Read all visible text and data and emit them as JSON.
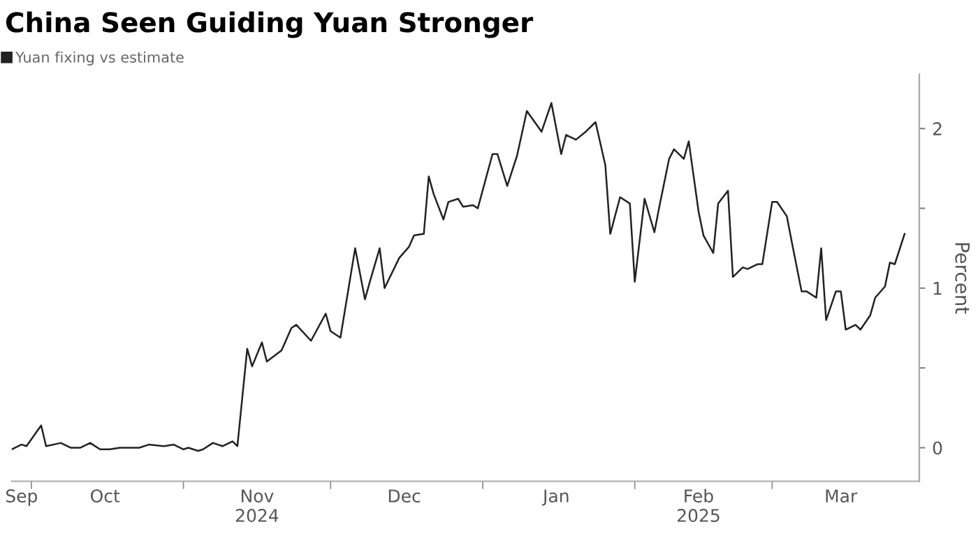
{
  "chart_data": {
    "type": "line",
    "title": "China Seen Guiding Yuan Stronger",
    "ylabel": "Percent",
    "legend": "top left",
    "xlim": [
      "2024-09-27",
      "2025-03-31"
    ],
    "ylim": [
      -0.21,
      2.34
    ],
    "yticks": [
      0,
      {
        "value": 0.5,
        "label": null
      },
      1,
      {
        "value": 1.5,
        "label": null
      },
      2
    ],
    "xticks": [
      {
        "value": "2024-09-29",
        "label": "Sep"
      },
      {
        "value": "2024-10-01",
        "label": null
      },
      {
        "value": "2024-10-16",
        "label": "Oct"
      },
      {
        "value": "2024-11-01",
        "label": null
      },
      {
        "value": "2024-11-16",
        "label": "Nov\n2024"
      },
      {
        "value": "2024-12-01",
        "label": null
      },
      {
        "value": "2024-12-16",
        "label": "Dec"
      },
      {
        "value": "2025-01-01",
        "label": null
      },
      {
        "value": "2025-01-16",
        "label": "Jan"
      },
      {
        "value": "2025-02-01",
        "label": null
      },
      {
        "value": "2025-02-14",
        "label": "Feb\n2025"
      },
      {
        "value": "2025-03-01",
        "label": null
      },
      {
        "value": "2025-03-15",
        "label": "Mar"
      }
    ],
    "series": [
      {
        "name": "Yuan fixing vs estimate",
        "color": "#222222",
        "x": [
          "2024-09-27",
          "2024-09-29",
          "2024-09-30",
          "2024-10-03",
          "2024-10-04",
          "2024-10-07",
          "2024-10-09",
          "2024-10-11",
          "2024-10-13",
          "2024-10-15",
          "2024-10-17",
          "2024-10-19",
          "2024-10-22",
          "2024-10-23",
          "2024-10-25",
          "2024-10-28",
          "2024-10-30",
          "2024-11-01",
          "2024-11-02",
          "2024-11-04",
          "2024-11-05",
          "2024-11-07",
          "2024-11-09",
          "2024-11-11",
          "2024-11-12",
          "2024-11-14",
          "2024-11-15",
          "2024-11-17",
          "2024-11-18",
          "2024-11-21",
          "2024-11-23",
          "2024-11-24",
          "2024-11-27",
          "2024-11-30",
          "2024-12-01",
          "2024-12-03",
          "2024-12-06",
          "2024-12-08",
          "2024-12-09",
          "2024-12-11",
          "2024-12-12",
          "2024-12-15",
          "2024-12-17",
          "2024-12-18",
          "2024-12-20",
          "2024-12-21",
          "2024-12-22",
          "2024-12-24",
          "2024-12-25",
          "2024-12-27",
          "2024-12-28",
          "2024-12-30",
          "2024-12-31",
          "2025-01-03",
          "2025-01-04",
          "2025-01-06",
          "2025-01-08",
          "2025-01-10",
          "2025-01-13",
          "2025-01-15",
          "2025-01-17",
          "2025-01-18",
          "2025-01-20",
          "2025-01-22",
          "2025-01-24",
          "2025-01-26",
          "2025-01-27",
          "2025-01-29",
          "2025-01-31",
          "2025-02-01",
          "2025-02-03",
          "2025-02-05",
          "2025-02-06",
          "2025-02-08",
          "2025-02-09",
          "2025-02-11",
          "2025-02-12",
          "2025-02-14",
          "2025-02-15",
          "2025-02-17",
          "2025-02-18",
          "2025-02-20",
          "2025-02-21",
          "2025-02-23",
          "2025-02-24",
          "2025-02-26",
          "2025-02-27",
          "2025-03-01",
          "2025-03-02",
          "2025-03-04",
          "2025-03-05",
          "2025-03-07",
          "2025-03-08",
          "2025-03-10",
          "2025-03-11",
          "2025-03-12",
          "2025-03-14",
          "2025-03-15",
          "2025-03-16",
          "2025-03-18",
          "2025-03-19",
          "2025-03-21",
          "2025-03-22",
          "2025-03-24",
          "2025-03-25",
          "2025-03-26",
          "2025-03-28"
        ],
        "values": [
          -0.01,
          0.02,
          0.01,
          0.14,
          0.01,
          0.03,
          0.0,
          0.0,
          0.03,
          -0.01,
          -0.01,
          0.0,
          0.0,
          0.0,
          0.02,
          0.01,
          0.02,
          -0.01,
          0.0,
          -0.02,
          -0.01,
          0.03,
          0.01,
          0.04,
          0.01,
          0.62,
          0.51,
          0.66,
          0.54,
          0.61,
          0.75,
          0.77,
          0.67,
          0.84,
          0.73,
          0.69,
          1.25,
          0.93,
          1.04,
          1.25,
          1.0,
          1.19,
          1.26,
          1.33,
          1.34,
          1.7,
          1.59,
          1.43,
          1.54,
          1.56,
          1.51,
          1.52,
          1.5,
          1.84,
          1.84,
          1.64,
          1.83,
          2.11,
          1.98,
          2.16,
          1.84,
          1.96,
          1.93,
          1.98,
          2.04,
          1.77,
          1.34,
          1.57,
          1.53,
          1.04,
          1.56,
          1.35,
          1.51,
          1.81,
          1.87,
          1.81,
          1.92,
          1.48,
          1.33,
          1.22,
          1.53,
          1.61,
          1.07,
          1.13,
          1.12,
          1.15,
          1.15,
          1.54,
          1.54,
          1.45,
          1.29,
          0.98,
          0.98,
          0.94,
          1.25,
          0.8,
          0.98,
          0.98,
          0.74,
          0.77,
          0.74,
          0.83,
          0.94,
          1.01,
          1.16,
          1.15,
          1.34
        ]
      }
    ]
  }
}
